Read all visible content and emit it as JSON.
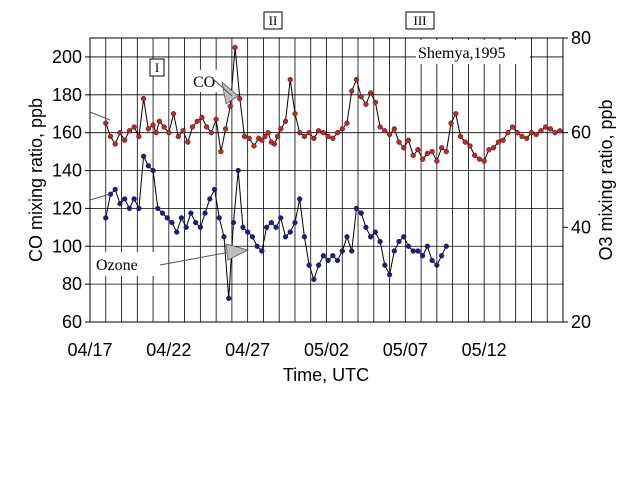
{
  "chart_data": {
    "type": "line",
    "xlabel": "Time, UTC",
    "ylabel_left": "CO mixing ratio, ppb",
    "ylabel_right": "O3 mixing ratio, ppb",
    "x_ticks": [
      "04/17",
      "04/22",
      "04/27",
      "05/02",
      "05/07",
      "05/12"
    ],
    "xlim_days": [
      0,
      30
    ],
    "ylim_left": [
      60,
      210
    ],
    "ylim_right": [
      20,
      80
    ],
    "y_ticks_left": [
      60,
      80,
      100,
      120,
      140,
      160,
      180,
      200
    ],
    "y_ticks_right": [
      20,
      40,
      60,
      80
    ],
    "grid": true,
    "annotations": {
      "station": "Shemya,1995",
      "co_label": "CO",
      "ozone_label": "Ozone",
      "event_1": "I",
      "event_2": "II",
      "event_3": "III"
    },
    "series": [
      {
        "name": "CO",
        "axis": "left",
        "color": "#cc2222",
        "x": [
          1.0,
          1.3,
          1.6,
          1.9,
          2.2,
          2.5,
          2.8,
          3.1,
          3.4,
          3.7,
          4.0,
          4.2,
          4.4,
          4.7,
          5.0,
          5.3,
          5.6,
          5.9,
          6.2,
          6.5,
          6.8,
          7.1,
          7.4,
          7.7,
          8.0,
          8.3,
          8.6,
          8.9,
          9.2,
          9.5,
          9.8,
          10.1,
          10.4,
          10.7,
          10.9,
          11.1,
          11.3,
          11.5,
          11.7,
          11.9,
          12.1,
          12.4,
          12.7,
          13.0,
          13.3,
          13.6,
          13.9,
          14.2,
          14.5,
          14.8,
          15.1,
          15.4,
          15.7,
          16.0,
          16.3,
          16.6,
          16.9,
          17.2,
          17.5,
          17.8,
          18.1,
          18.4,
          18.7,
          19.0,
          19.3,
          19.6,
          19.9,
          20.2,
          20.5,
          20.8,
          21.1,
          21.4,
          21.7,
          22.0,
          22.3,
          22.6,
          22.9,
          23.2,
          23.5,
          23.8,
          24.1,
          24.4,
          24.7,
          25.0,
          25.3,
          25.6,
          25.9,
          26.2,
          26.5,
          26.8,
          27.1,
          27.4,
          27.7,
          28.0,
          28.3,
          28.6,
          28.9,
          29.2,
          29.5,
          29.8
        ],
        "values": [
          165,
          158,
          154,
          160,
          156,
          161,
          163,
          158,
          178,
          162,
          164,
          160,
          166,
          163,
          160,
          170,
          158,
          161,
          155,
          163,
          166,
          168,
          163,
          160,
          167,
          150,
          162,
          174,
          205,
          178,
          158,
          157,
          153,
          157,
          156,
          158,
          160,
          155,
          154,
          158,
          162,
          166,
          188,
          170,
          160,
          158,
          160,
          157,
          161,
          160,
          158,
          157,
          160,
          162,
          165,
          182,
          188,
          179,
          175,
          181,
          176,
          163,
          161,
          159,
          162,
          155,
          152,
          156,
          148,
          151,
          146,
          149,
          150,
          145,
          152,
          150,
          165,
          170,
          158,
          155,
          153,
          148,
          146,
          145,
          151,
          152,
          155,
          156,
          160,
          163,
          160,
          158,
          157,
          160,
          159,
          161,
          163,
          162,
          160,
          161
        ]
      },
      {
        "name": "Ozone",
        "axis": "right",
        "color": "#1a1a99",
        "x": [
          1.0,
          1.3,
          1.6,
          1.9,
          2.2,
          2.5,
          2.8,
          3.1,
          3.4,
          3.7,
          4.0,
          4.3,
          4.6,
          4.9,
          5.2,
          5.5,
          5.8,
          6.1,
          6.4,
          6.7,
          7.0,
          7.3,
          7.6,
          7.9,
          8.2,
          8.5,
          8.8,
          9.1,
          9.4,
          9.7,
          10.0,
          10.3,
          10.6,
          10.9,
          11.2,
          11.5,
          11.8,
          12.1,
          12.4,
          12.7,
          13.0,
          13.3,
          13.6,
          13.9,
          14.2,
          14.5,
          14.8,
          15.1,
          15.4,
          15.7,
          16.0,
          16.3,
          16.6,
          16.9,
          17.2,
          17.5,
          17.8,
          18.1,
          18.4,
          18.7,
          19.0,
          19.3,
          19.6,
          19.9,
          20.2,
          20.5,
          20.8,
          21.1,
          21.4,
          21.7,
          22.0,
          22.3,
          22.6
        ],
        "values": [
          42,
          47,
          48,
          45,
          46,
          44,
          46,
          44,
          55,
          53,
          52,
          44,
          43,
          42,
          41,
          39,
          42,
          40,
          43,
          41,
          40,
          43,
          46,
          48,
          42,
          38,
          25,
          41,
          52,
          40,
          39,
          38,
          36,
          35,
          40,
          41,
          40,
          42,
          38,
          39,
          41,
          46,
          38,
          32,
          29,
          32,
          34,
          33,
          34,
          33,
          35,
          38,
          35,
          44,
          43,
          40,
          38,
          39,
          37,
          32,
          30,
          35,
          37,
          38,
          36,
          35,
          35,
          34,
          36,
          33,
          32,
          34,
          36
        ]
      }
    ]
  }
}
